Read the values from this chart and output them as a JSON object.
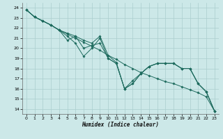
{
  "title": "",
  "xlabel": "Humidex (Indice chaleur)",
  "xlim": [
    -0.5,
    23.5
  ],
  "ylim": [
    13.5,
    24.5
  ],
  "xticks": [
    0,
    1,
    2,
    3,
    4,
    5,
    6,
    7,
    8,
    9,
    10,
    11,
    12,
    13,
    14,
    15,
    16,
    17,
    18,
    19,
    20,
    21,
    22,
    23
  ],
  "yticks": [
    14,
    15,
    16,
    17,
    18,
    19,
    20,
    21,
    22,
    23,
    24
  ],
  "bg_color": "#cce8e8",
  "grid_color": "#aacece",
  "line_color": "#1e6b5e",
  "series": [
    {
      "x": [
        0,
        1,
        2,
        3,
        4,
        5,
        6,
        7,
        8,
        9,
        10,
        11,
        12,
        13,
        14,
        15,
        16,
        17,
        18,
        19,
        20,
        21,
        22,
        23
      ],
      "y": [
        23.8,
        23.1,
        22.7,
        22.3,
        21.8,
        21.4,
        21.0,
        20.6,
        20.2,
        19.8,
        19.3,
        18.9,
        18.4,
        18.0,
        17.6,
        17.3,
        17.0,
        16.7,
        16.5,
        16.2,
        15.9,
        15.6,
        15.2,
        13.8
      ]
    },
    {
      "x": [
        0,
        1,
        2,
        3,
        4,
        5,
        6,
        7,
        8,
        9,
        10,
        11,
        12,
        13,
        14,
        15,
        16,
        17,
        18,
        19,
        20,
        21,
        22,
        23
      ],
      "y": [
        23.8,
        23.1,
        22.7,
        22.3,
        21.8,
        21.2,
        20.5,
        19.2,
        20.0,
        21.0,
        19.0,
        18.5,
        16.0,
        16.5,
        17.5,
        18.2,
        18.5,
        18.5,
        18.5,
        18.0,
        18.0,
        16.5,
        15.7,
        13.8
      ]
    },
    {
      "x": [
        0,
        1,
        2,
        3,
        4,
        5,
        6,
        7,
        8,
        9,
        10,
        11,
        12,
        13,
        14,
        15,
        16,
        17,
        18,
        19,
        20,
        21,
        22,
        23
      ],
      "y": [
        23.8,
        23.1,
        22.7,
        22.3,
        21.8,
        21.5,
        21.2,
        20.8,
        20.5,
        21.2,
        19.3,
        18.6,
        16.0,
        16.8,
        17.5,
        18.2,
        18.5,
        18.5,
        18.5,
        18.0,
        18.0,
        16.5,
        15.7,
        13.8
      ]
    },
    {
      "x": [
        0,
        1,
        2,
        3,
        4,
        5,
        6,
        7,
        8,
        9,
        10,
        11,
        12,
        13,
        14,
        15,
        16,
        17,
        18,
        19,
        20,
        21,
        22,
        23
      ],
      "y": [
        23.8,
        23.1,
        22.7,
        22.3,
        21.8,
        20.8,
        21.2,
        20.0,
        20.3,
        20.5,
        19.0,
        18.5,
        16.0,
        16.5,
        17.5,
        18.2,
        18.5,
        18.5,
        18.5,
        18.0,
        18.0,
        16.5,
        15.7,
        13.8
      ]
    }
  ]
}
